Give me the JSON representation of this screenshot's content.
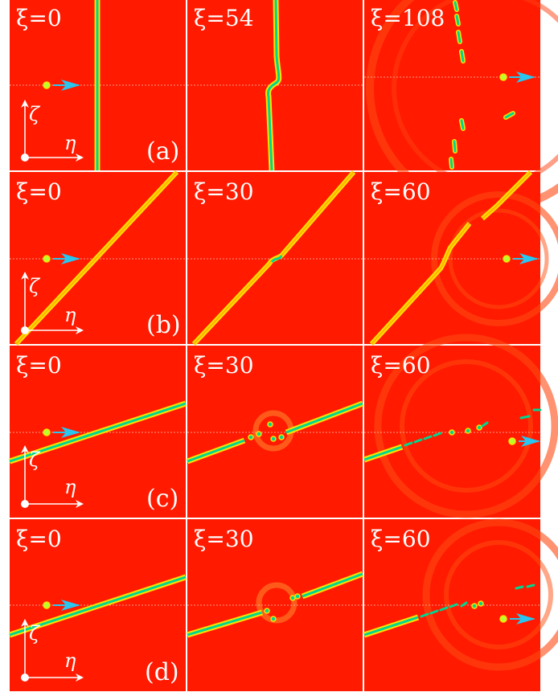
{
  "figure": {
    "rows": [
      {
        "label": "(a)",
        "panels": [
          {
            "time_label": "ξ=0"
          },
          {
            "time_label": "ξ=54"
          },
          {
            "time_label": "ξ=108"
          }
        ]
      },
      {
        "label": "(b)",
        "panels": [
          {
            "time_label": "ξ=0"
          },
          {
            "time_label": "ξ=30"
          },
          {
            "time_label": "ξ=60"
          }
        ]
      },
      {
        "label": "(c)",
        "panels": [
          {
            "time_label": "ξ=0"
          },
          {
            "time_label": "ξ=30"
          },
          {
            "time_label": "ξ=60"
          }
        ]
      },
      {
        "label": "(d)",
        "panels": [
          {
            "time_label": "ξ=0"
          },
          {
            "time_label": "ξ=30"
          },
          {
            "time_label": "ξ=60"
          }
        ]
      }
    ],
    "axes": {
      "horizontal": "η",
      "vertical": "ζ"
    },
    "colors": {
      "background": "#ff1a00",
      "wave_edge": "#ffe000",
      "wave_core": "#00d68f",
      "arrow": "#29c6f0",
      "soliton": "#b8ff30"
    }
  }
}
